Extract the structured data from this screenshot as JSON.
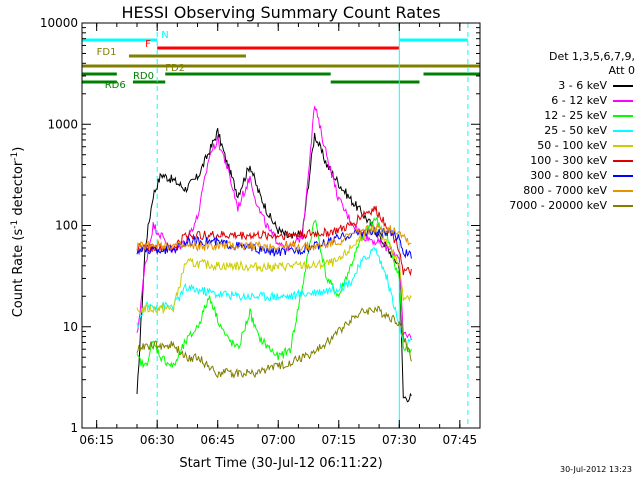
{
  "chart_data": {
    "type": "line",
    "title": "HESSI Observing Summary Count Rates",
    "xlabel": "Start Time (30-Jul-12 06:11:22)",
    "ylabel_main": "Count Rate (s",
    "ylabel_sup1": "-1",
    "ylabel_mid": " detector",
    "ylabel_sup2": "-1",
    "ylabel_end": ")",
    "yscale": "log",
    "ylim": [
      1,
      10000
    ],
    "xlim": [
      "06:11:22",
      "07:50:00"
    ],
    "x_ticks": [
      "06:15",
      "06:30",
      "06:45",
      "07:00",
      "07:15",
      "07:30",
      "07:45"
    ],
    "y_ticks": [
      "1",
      "10",
      "100",
      "1000",
      "10000"
    ],
    "legend_header": [
      "Det 1,3,5,6,7,9,",
      "Att 0"
    ],
    "legend_position": "right",
    "series": [
      {
        "name": "3 - 6 keV",
        "color": "#000000",
        "points": [
          [
            "06:25",
            2
          ],
          [
            "06:27",
            60
          ],
          [
            "06:29",
            200
          ],
          [
            "06:31",
            320
          ],
          [
            "06:34",
            280
          ],
          [
            "06:37",
            230
          ],
          [
            "06:40",
            300
          ],
          [
            "06:43",
            550
          ],
          [
            "06:45",
            850
          ],
          [
            "06:47",
            450
          ],
          [
            "06:50",
            200
          ],
          [
            "06:53",
            400
          ],
          [
            "06:55",
            220
          ],
          [
            "06:58",
            120
          ],
          [
            "07:00",
            90
          ],
          [
            "07:03",
            75
          ],
          [
            "07:06",
            85
          ],
          [
            "07:09",
            800
          ],
          [
            "07:12",
            400
          ],
          [
            "07:15",
            260
          ],
          [
            "07:18",
            180
          ],
          [
            "07:21",
            130
          ],
          [
            "07:24",
            90
          ],
          [
            "07:27",
            60
          ],
          [
            "07:30",
            40
          ],
          [
            "07:31",
            2
          ],
          [
            "07:33",
            2
          ]
        ]
      },
      {
        "name": "6 - 12 keV",
        "color": "#ff00ff",
        "points": [
          [
            "06:25",
            8
          ],
          [
            "06:27",
            40
          ],
          [
            "06:29",
            100
          ],
          [
            "06:31",
            80
          ],
          [
            "06:34",
            55
          ],
          [
            "06:37",
            70
          ],
          [
            "06:40",
            120
          ],
          [
            "06:43",
            500
          ],
          [
            "06:45",
            700
          ],
          [
            "06:47",
            420
          ],
          [
            "06:50",
            150
          ],
          [
            "06:53",
            300
          ],
          [
            "06:55",
            150
          ],
          [
            "06:58",
            85
          ],
          [
            "07:00",
            70
          ],
          [
            "07:03",
            60
          ],
          [
            "07:06",
            80
          ],
          [
            "07:09",
            1550
          ],
          [
            "07:12",
            500
          ],
          [
            "07:15",
            180
          ],
          [
            "07:18",
            110
          ],
          [
            "07:21",
            80
          ],
          [
            "07:24",
            70
          ],
          [
            "07:27",
            60
          ],
          [
            "07:30",
            50
          ],
          [
            "07:31",
            8
          ],
          [
            "07:33",
            8
          ]
        ]
      },
      {
        "name": "12 - 25 keV",
        "color": "#00ff00",
        "points": [
          [
            "06:25",
            5
          ],
          [
            "06:27",
            4
          ],
          [
            "06:29",
            7
          ],
          [
            "06:31",
            5
          ],
          [
            "06:34",
            4
          ],
          [
            "06:37",
            7
          ],
          [
            "06:40",
            10
          ],
          [
            "06:43",
            20
          ],
          [
            "06:45",
            12
          ],
          [
            "06:47",
            8
          ],
          [
            "06:50",
            6
          ],
          [
            "06:53",
            14
          ],
          [
            "06:55",
            8
          ],
          [
            "06:58",
            6
          ],
          [
            "07:00",
            5
          ],
          [
            "07:03",
            6
          ],
          [
            "07:06",
            25
          ],
          [
            "07:09",
            120
          ],
          [
            "07:12",
            30
          ],
          [
            "07:15",
            20
          ],
          [
            "07:18",
            40
          ],
          [
            "07:21",
            80
          ],
          [
            "07:24",
            120
          ],
          [
            "07:27",
            75
          ],
          [
            "07:30",
            30
          ],
          [
            "07:31",
            6
          ],
          [
            "07:33",
            6
          ]
        ]
      },
      {
        "name": "25 - 50 keV",
        "color": "#00ffff",
        "points": [
          [
            "06:25",
            10
          ],
          [
            "06:27",
            16
          ],
          [
            "06:29",
            16
          ],
          [
            "06:31",
            16
          ],
          [
            "06:34",
            16
          ],
          [
            "06:37",
            24
          ],
          [
            "06:40",
            23
          ],
          [
            "06:43",
            22
          ],
          [
            "06:45",
            21
          ],
          [
            "06:47",
            21
          ],
          [
            "06:50",
            20
          ],
          [
            "06:53",
            20
          ],
          [
            "06:55",
            20
          ],
          [
            "06:58",
            20
          ],
          [
            "07:00",
            20
          ],
          [
            "07:03",
            20
          ],
          [
            "07:06",
            21
          ],
          [
            "07:09",
            22
          ],
          [
            "07:12",
            23
          ],
          [
            "07:15",
            24
          ],
          [
            "07:18",
            28
          ],
          [
            "07:21",
            45
          ],
          [
            "07:24",
            60
          ],
          [
            "07:27",
            30
          ],
          [
            "07:30",
            10
          ],
          [
            "07:31",
            7
          ],
          [
            "07:33",
            7
          ]
        ]
      },
      {
        "name": "50 - 100 keV",
        "color": "#cccc00",
        "points": [
          [
            "06:25",
            14
          ],
          [
            "06:27",
            15
          ],
          [
            "06:29",
            15
          ],
          [
            "06:31",
            15
          ],
          [
            "06:34",
            15
          ],
          [
            "06:37",
            43
          ],
          [
            "06:40",
            42
          ],
          [
            "06:43",
            41
          ],
          [
            "06:45",
            40
          ],
          [
            "06:47",
            40
          ],
          [
            "06:50",
            40
          ],
          [
            "06:53",
            39
          ],
          [
            "06:55",
            39
          ],
          [
            "06:58",
            39
          ],
          [
            "07:00",
            39
          ],
          [
            "07:03",
            40
          ],
          [
            "07:06",
            40
          ],
          [
            "07:09",
            40
          ],
          [
            "07:12",
            42
          ],
          [
            "07:15",
            44
          ],
          [
            "07:18",
            60
          ],
          [
            "07:21",
            80
          ],
          [
            "07:24",
            90
          ],
          [
            "07:27",
            70
          ],
          [
            "07:30",
            40
          ],
          [
            "07:31",
            20
          ],
          [
            "07:33",
            20
          ]
        ]
      },
      {
        "name": "100 - 300 keV",
        "color": "#dd0000",
        "points": [
          [
            "06:25",
            60
          ],
          [
            "06:27",
            60
          ],
          [
            "06:29",
            60
          ],
          [
            "06:31",
            60
          ],
          [
            "06:34",
            60
          ],
          [
            "06:37",
            80
          ],
          [
            "06:40",
            80
          ],
          [
            "06:43",
            80
          ],
          [
            "06:45",
            80
          ],
          [
            "06:47",
            80
          ],
          [
            "06:50",
            80
          ],
          [
            "06:53",
            80
          ],
          [
            "06:55",
            80
          ],
          [
            "06:58",
            80
          ],
          [
            "07:00",
            80
          ],
          [
            "07:03",
            81
          ],
          [
            "07:06",
            82
          ],
          [
            "07:09",
            83
          ],
          [
            "07:12",
            85
          ],
          [
            "07:15",
            90
          ],
          [
            "07:18",
            100
          ],
          [
            "07:21",
            130
          ],
          [
            "07:24",
            145
          ],
          [
            "07:27",
            100
          ],
          [
            "07:30",
            60
          ],
          [
            "07:31",
            35
          ],
          [
            "07:33",
            35
          ]
        ]
      },
      {
        "name": "300 - 800 keV",
        "color": "#0000ff",
        "points": [
          [
            "06:25",
            57
          ],
          [
            "06:27",
            57
          ],
          [
            "06:29",
            57
          ],
          [
            "06:31",
            57
          ],
          [
            "06:34",
            58
          ],
          [
            "06:37",
            68
          ],
          [
            "06:40",
            70
          ],
          [
            "06:43",
            70
          ],
          [
            "06:45",
            68
          ],
          [
            "06:47",
            66
          ],
          [
            "06:50",
            63
          ],
          [
            "06:53",
            60
          ],
          [
            "06:55",
            58
          ],
          [
            "06:58",
            55
          ],
          [
            "07:00",
            55
          ],
          [
            "07:03",
            56
          ],
          [
            "07:06",
            58
          ],
          [
            "07:09",
            62
          ],
          [
            "07:12",
            68
          ],
          [
            "07:15",
            75
          ],
          [
            "07:18",
            82
          ],
          [
            "07:21",
            86
          ],
          [
            "07:24",
            86
          ],
          [
            "07:27",
            84
          ],
          [
            "07:30",
            78
          ],
          [
            "07:31",
            55
          ],
          [
            "07:33",
            50
          ]
        ]
      },
      {
        "name": "800 - 7000 keV",
        "color": "#e69500",
        "points": [
          [
            "06:25",
            62
          ],
          [
            "06:27",
            64
          ],
          [
            "06:29",
            65
          ],
          [
            "06:31",
            64
          ],
          [
            "06:34",
            63
          ],
          [
            "06:37",
            62
          ],
          [
            "06:40",
            62
          ],
          [
            "06:43",
            62
          ],
          [
            "06:45",
            63
          ],
          [
            "06:47",
            63
          ],
          [
            "06:50",
            63
          ],
          [
            "06:53",
            63
          ],
          [
            "06:55",
            63
          ],
          [
            "06:58",
            62
          ],
          [
            "07:00",
            62
          ],
          [
            "07:03",
            62
          ],
          [
            "07:06",
            62
          ],
          [
            "07:09",
            62
          ],
          [
            "07:12",
            65
          ],
          [
            "07:15",
            70
          ],
          [
            "07:18",
            80
          ],
          [
            "07:21",
            90
          ],
          [
            "07:24",
            93
          ],
          [
            "07:27",
            92
          ],
          [
            "07:30",
            88
          ],
          [
            "07:31",
            80
          ],
          [
            "07:33",
            65
          ]
        ]
      },
      {
        "name": "7000 - 20000 keV",
        "color": "#808000",
        "points": [
          [
            "06:25",
            6
          ],
          [
            "06:27",
            6.5
          ],
          [
            "06:29",
            6.5
          ],
          [
            "06:31",
            6.5
          ],
          [
            "06:34",
            6.5
          ],
          [
            "06:37",
            5
          ],
          [
            "06:40",
            5
          ],
          [
            "06:43",
            4
          ],
          [
            "06:45",
            3.5
          ],
          [
            "06:47",
            3.5
          ],
          [
            "06:50",
            3.5
          ],
          [
            "06:53",
            3.5
          ],
          [
            "06:55",
            3.5
          ],
          [
            "06:58",
            4
          ],
          [
            "07:00",
            4
          ],
          [
            "07:03",
            4.5
          ],
          [
            "07:06",
            5
          ],
          [
            "07:09",
            5.5
          ],
          [
            "07:12",
            7
          ],
          [
            "07:15",
            9
          ],
          [
            "07:18",
            12
          ],
          [
            "07:21",
            14
          ],
          [
            "07:24",
            15
          ],
          [
            "07:27",
            13
          ],
          [
            "07:30",
            11
          ],
          [
            "07:31",
            8
          ],
          [
            "07:33",
            5
          ]
        ]
      }
    ],
    "flag_bars": [
      {
        "label": "N",
        "color": "#00ffff",
        "segments": [
          [
            "06:11:22",
            "06:30"
          ],
          [
            "07:30",
            "07:47"
          ]
        ],
        "level": 0
      },
      {
        "label": "F",
        "color": "#ff0000",
        "segments": [
          [
            "06:30",
            "07:30"
          ]
        ],
        "level": 1
      },
      {
        "label": "FD1",
        "color": "#808000",
        "segments": [
          [
            "06:23",
            "06:52"
          ]
        ],
        "level": 2
      },
      {
        "label": "FD2",
        "color": "#808000",
        "segments": [
          [
            "06:11:22",
            "07:50"
          ]
        ],
        "level": 3
      },
      {
        "label": "RD0",
        "color": "#008000",
        "segments": [
          [
            "06:11:22",
            "06:20"
          ],
          [
            "06:32",
            "07:13"
          ],
          [
            "07:36",
            "07:50"
          ]
        ],
        "level": 4
      },
      {
        "label": "RD6",
        "color": "#008000",
        "segments": [
          [
            "06:11:22",
            "06:20"
          ],
          [
            "06:24",
            "06:32"
          ],
          [
            "07:13",
            "07:35"
          ]
        ],
        "level": 5
      }
    ],
    "vertical_lines": [
      {
        "time": "06:11:22",
        "color": "#00ffff",
        "style": "solid"
      },
      {
        "time": "06:30",
        "color": "#00ffff",
        "style": "dashed"
      },
      {
        "time": "07:30",
        "color": "#00ffff",
        "style": "solid"
      },
      {
        "time": "07:47",
        "color": "#00ffff",
        "style": "dashed"
      }
    ]
  },
  "footer": {
    "date": "30-Jul-2012 13:23"
  }
}
